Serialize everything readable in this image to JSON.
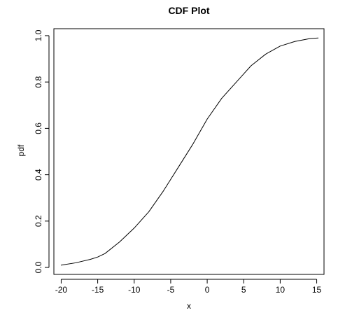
{
  "chart_data": {
    "type": "line",
    "title": "CDF Plot",
    "xlabel": "x",
    "ylabel": "pdf",
    "xlim": [
      -21,
      16
    ],
    "ylim": [
      -0.03,
      1.03
    ],
    "x_ticks": [
      -20,
      -15,
      -10,
      -5,
      0,
      5,
      10,
      15
    ],
    "x_tick_labels": [
      "-20",
      "-15",
      "-10",
      "-5",
      "0",
      "5",
      "10",
      "15"
    ],
    "y_ticks": [
      0.0,
      0.2,
      0.4,
      0.6,
      0.8,
      1.0
    ],
    "y_tick_labels": [
      "0.0",
      "0.2",
      "0.4",
      "0.6",
      "0.8",
      "1.0"
    ],
    "grid": false,
    "line_color": "#000000",
    "series": [
      {
        "x": [
          -20,
          -18,
          -16,
          -15,
          -14,
          -12,
          -10,
          -8,
          -6,
          -5,
          -4,
          -2,
          0,
          2,
          4,
          5,
          6,
          8,
          10,
          12,
          14,
          15.2
        ],
        "values": [
          0.01,
          0.02,
          0.035,
          0.045,
          0.06,
          0.11,
          0.17,
          0.24,
          0.33,
          0.38,
          0.43,
          0.53,
          0.64,
          0.73,
          0.8,
          0.835,
          0.87,
          0.92,
          0.955,
          0.975,
          0.987,
          0.99
        ]
      }
    ]
  }
}
